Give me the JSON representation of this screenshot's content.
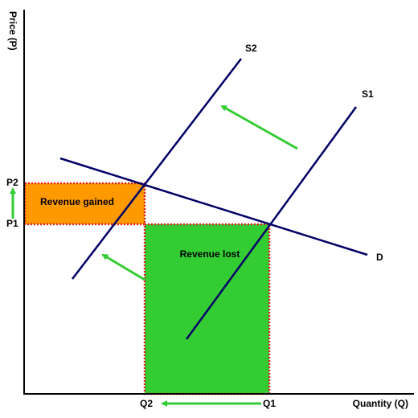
{
  "axes": {
    "y_label": "Price (P)",
    "x_label": "Quantity (Q)"
  },
  "curves": {
    "s2": "S2",
    "s1": "S1",
    "d": "D"
  },
  "ticks": {
    "p2": "P2",
    "p1": "P1",
    "q2": "Q2",
    "q1": "Q1"
  },
  "regions": {
    "gained": "Revenue gained",
    "lost": "Revenue lost"
  }
}
